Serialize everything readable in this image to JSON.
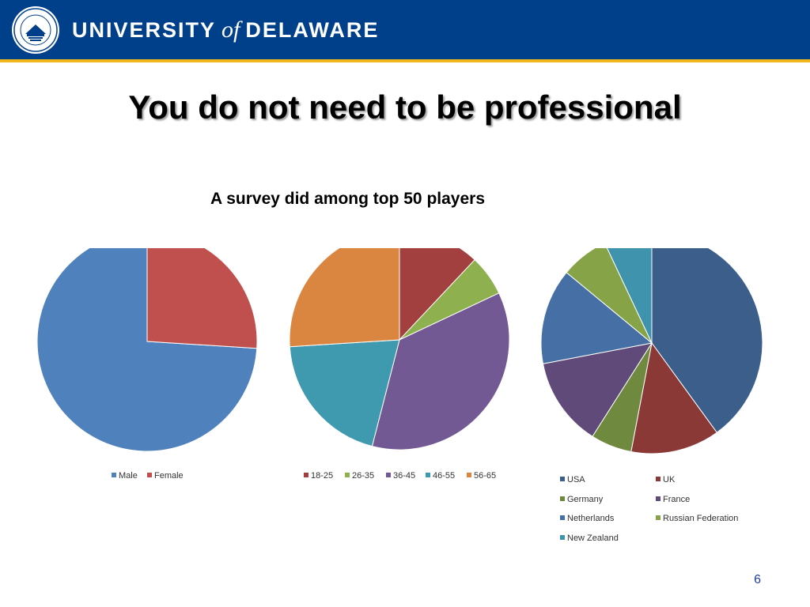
{
  "header": {
    "univ_text": "UNIVERSITY",
    "of_text": "of",
    "name_text": "DELAWARE"
  },
  "slide": {
    "title": "You do not need to be professional",
    "subtitle": "A survey did among top 50 players",
    "page_number": "6"
  },
  "chart_data": [
    {
      "type": "pie",
      "title": "",
      "labels": [
        "Male",
        "Female"
      ],
      "values": [
        74,
        26
      ],
      "colors": [
        "#4f81bd",
        "#c0504d"
      ],
      "legend_position": "bottom"
    },
    {
      "type": "pie",
      "title": "",
      "labels": [
        "18-25",
        "26-35",
        "36-45",
        "46-55",
        "56-65"
      ],
      "values": [
        12,
        6,
        36,
        20,
        26
      ],
      "colors": [
        "#a2403f",
        "#8eb04f",
        "#735993",
        "#3f9ab0",
        "#db8640"
      ],
      "legend_position": "bottom"
    },
    {
      "type": "pie",
      "title": "",
      "labels": [
        "USA",
        "UK",
        "Germany",
        "France",
        "Netherlands",
        "Russian Federation",
        "New Zealand"
      ],
      "values": [
        40,
        13,
        6,
        13,
        14,
        7,
        7
      ],
      "colors": [
        "#3b5e8b",
        "#8b3937",
        "#6f893e",
        "#5f4a79",
        "#4670a5",
        "#87a347",
        "#3f93ad"
      ],
      "legend_position": "bottom"
    }
  ]
}
